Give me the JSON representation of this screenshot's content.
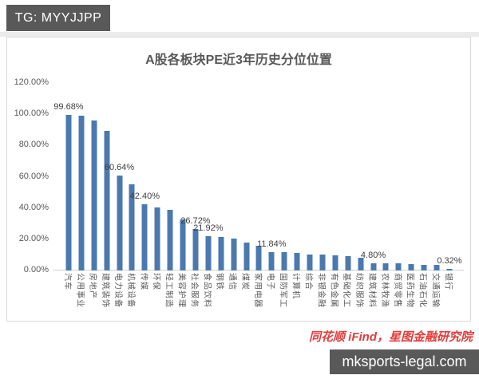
{
  "header": {
    "tag": "TG: MYYJJPP"
  },
  "chart_data": {
    "type": "bar",
    "title": "A股各板块PE近3年历史分位位置",
    "bar_color": "#4b79af",
    "ylim": [
      0,
      120
    ],
    "grid": false,
    "legend": false,
    "y_ticks": {
      "labels": [
        "0.00%",
        "20.00%",
        "40.00%",
        "60.00%",
        "80.00%",
        "100.00%",
        "120.00%"
      ],
      "values": [
        0,
        20,
        40,
        60,
        80,
        100,
        120
      ]
    },
    "categories": [
      "汽车",
      "公用事业",
      "房地产",
      "建筑装饰",
      "电力设备",
      "机械设备",
      "传媒",
      "环保",
      "轻工制造",
      "美容护理",
      "社会服务",
      "食品饮料",
      "钢铁",
      "通信",
      "煤炭",
      "家用电器",
      "电子",
      "国防军工",
      "计算机",
      "综合",
      "非银金融",
      "有色金属",
      "基础化工",
      "纺织服饰",
      "建筑材料",
      "农林牧渔",
      "商贸零售",
      "医药生物",
      "石油石化",
      "交通运输",
      "银行"
    ],
    "values": [
      99.68,
      99.0,
      96.0,
      89.5,
      60.64,
      55.0,
      42.4,
      40.2,
      38.9,
      32.5,
      26.72,
      21.92,
      21.4,
      20.3,
      17.7,
      16.0,
      11.84,
      11.6,
      11.2,
      10.4,
      10.1,
      9.6,
      9.2,
      8.3,
      4.8,
      4.7,
      4.5,
      4.3,
      3.8,
      3.4,
      0.32
    ],
    "data_labels": [
      "99.68%",
      null,
      null,
      null,
      "60.64%",
      null,
      "42.40%",
      null,
      null,
      null,
      "26.72%",
      "21.92%",
      null,
      null,
      null,
      null,
      "11.84%",
      null,
      null,
      null,
      null,
      null,
      null,
      null,
      "4.80%",
      null,
      null,
      null,
      null,
      null,
      "0.32%"
    ]
  },
  "footer": {
    "source": "同花顺 iFind，星图金融研究院",
    "site": "mksports-legal.com"
  }
}
